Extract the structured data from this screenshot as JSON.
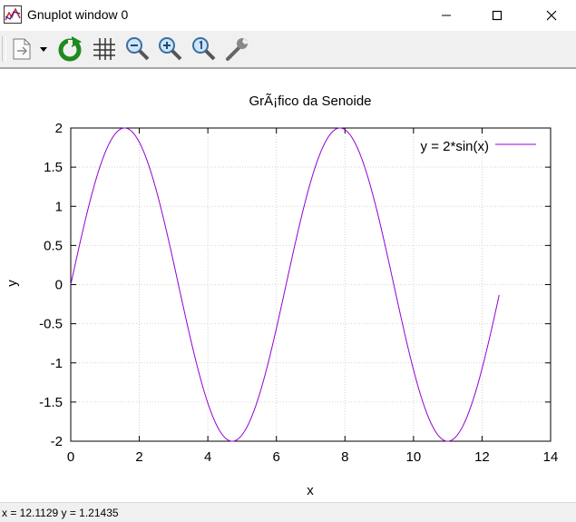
{
  "window": {
    "title": "Gnuplot window 0",
    "controls": [
      "minimize-icon",
      "maximize-icon",
      "close-icon"
    ]
  },
  "toolbar": {
    "buttons": [
      "copy-print-icon",
      "dropdown-arrow-icon",
      "replot-icon",
      "grid-icon",
      "zoom-out-icon",
      "zoom-in-icon",
      "zoom-reset-icon",
      "options-wrench-icon"
    ]
  },
  "chart_data": {
    "type": "line",
    "title": "GrÃ¡fico da Senoide",
    "xlabel": "x",
    "ylabel": "y",
    "xlim": [
      0,
      14
    ],
    "ylim": [
      -2,
      2
    ],
    "x_ticks": [
      "0",
      "2",
      "4",
      "6",
      "8",
      "10",
      "12",
      "14"
    ],
    "y_ticks": [
      "2",
      "1.5",
      "1",
      "0.5",
      "0",
      "-0.5",
      "-1",
      "-1.5",
      "-2"
    ],
    "grid": true,
    "legend_position": "top-right",
    "series": [
      {
        "name": "y = 2*sin(x)",
        "expression": "2*sin(x)",
        "x_range": [
          0,
          12.5
        ],
        "color": "#9400d3"
      }
    ]
  },
  "status": {
    "text": "x = 12.1129  y = 1.21435"
  }
}
